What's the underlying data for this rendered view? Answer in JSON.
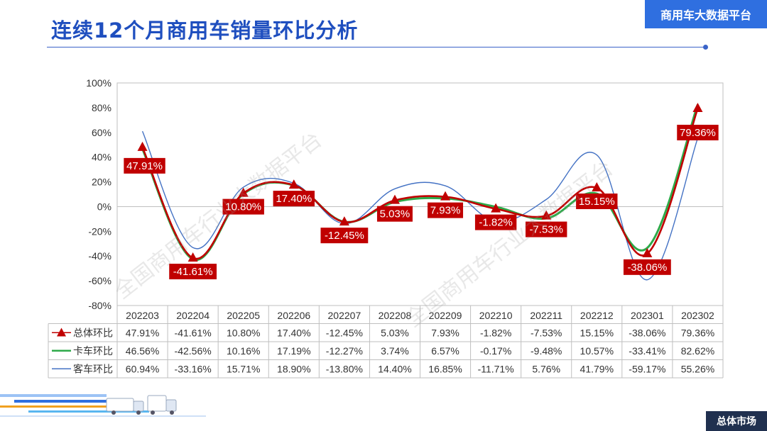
{
  "header": {
    "title": "连续12个月商用车销量环比分析",
    "brand": "商用车大数据平台",
    "footer_tag": "总体市场",
    "watermark": "全国商用车行业大数据平台"
  },
  "colors": {
    "total": "#c00000",
    "truck": "#2eaa4a",
    "bus": "#4472c4",
    "label_bg": "#c00000",
    "title": "#1f4fbf",
    "brand_bg": "#2f6fe0"
  },
  "chart_data": {
    "type": "line",
    "title": "",
    "xlabel": "",
    "ylabel": "",
    "ylim": [
      -80,
      100
    ],
    "yticks": [
      "-80%",
      "-60%",
      "-40%",
      "-20%",
      "0%",
      "20%",
      "40%",
      "60%",
      "80%",
      "100%"
    ],
    "grid": false,
    "categories": [
      "202203",
      "202204",
      "202205",
      "202206",
      "202207",
      "202208",
      "202209",
      "202210",
      "202211",
      "202212",
      "202301",
      "202302"
    ],
    "series": [
      {
        "name": "总体环比",
        "values": [
          47.91,
          -41.61,
          10.8,
          17.4,
          -12.45,
          5.03,
          7.93,
          -1.82,
          -7.53,
          15.15,
          -38.06,
          79.36
        ],
        "labels": [
          "47.91%",
          "-41.61%",
          "10.80%",
          "17.40%",
          "-12.45%",
          "5.03%",
          "7.93%",
          "-1.82%",
          "-7.53%",
          "15.15%",
          "-38.06%",
          "79.36%"
        ]
      },
      {
        "name": "卡车环比",
        "values": [
          46.56,
          -42.56,
          10.16,
          17.19,
          -12.27,
          3.74,
          6.57,
          -0.17,
          -9.48,
          10.57,
          -33.41,
          82.62
        ],
        "labels": [
          "46.56%",
          "-42.56%",
          "10.16%",
          "17.19%",
          "-12.27%",
          "3.74%",
          "6.57%",
          "-0.17%",
          "-9.48%",
          "10.57%",
          "-33.41%",
          "82.62%"
        ]
      },
      {
        "name": "客车环比",
        "values": [
          60.94,
          -33.16,
          15.71,
          18.9,
          -13.8,
          14.4,
          16.85,
          -11.71,
          5.76,
          41.79,
          -59.17,
          55.26
        ],
        "labels": [
          "60.94%",
          "-33.16%",
          "15.71%",
          "18.90%",
          "-13.80%",
          "14.40%",
          "16.85%",
          "-11.71%",
          "5.76%",
          "41.79%",
          "-59.17%",
          "55.26%"
        ]
      }
    ]
  }
}
